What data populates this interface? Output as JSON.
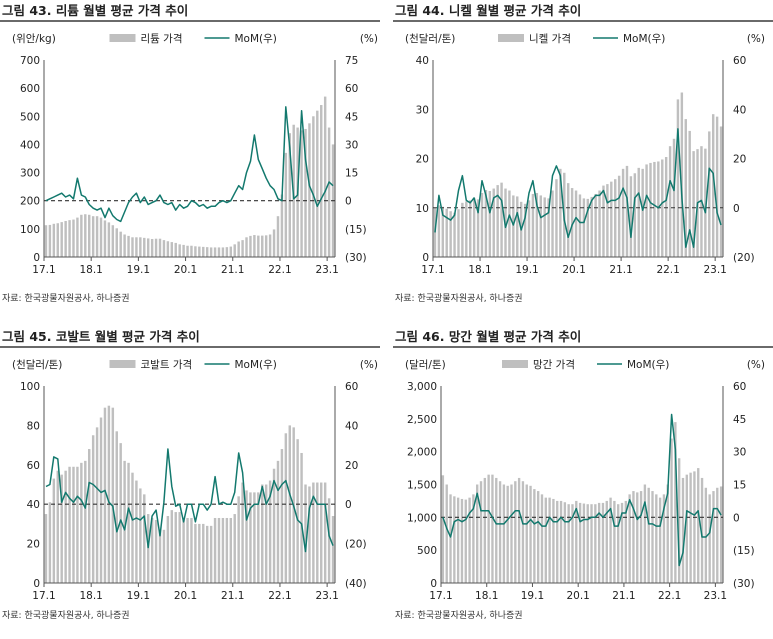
{
  "colors": {
    "bar": "#bfbfbf",
    "line": "#13796e",
    "zero": "#333333"
  },
  "source": "자료: 한국광물자원공사, 하나증권",
  "panels": [
    {
      "title": "그림 43. 리튬 월별 평균 가격 추이",
      "left_unit": "(위안/kg)",
      "right_unit": "(%)",
      "left_ticks": [
        "0",
        "100",
        "200",
        "300",
        "400",
        "500",
        "600",
        "700"
      ],
      "right_ticks": [
        "(30)",
        "(15)",
        "0",
        "15",
        "30",
        "45",
        "60",
        "75"
      ],
      "x_ticks": [
        "17.1",
        "18.1",
        "19.1",
        "20.1",
        "21.1",
        "22.1",
        "23.1"
      ],
      "legend": [
        "리튬 가격",
        "MoM(우)"
      ]
    },
    {
      "title": "그림 44. 니켈 월별 평균 가격 추이",
      "left_unit": "(천달러/톤)",
      "right_unit": "(%)",
      "left_ticks": [
        "0",
        "10",
        "20",
        "30",
        "40"
      ],
      "right_ticks": [
        "(20)",
        "0",
        "20",
        "40",
        "60"
      ],
      "x_ticks": [
        "17.1",
        "18.1",
        "19.1",
        "20.1",
        "21.1",
        "22.1",
        "23.1"
      ],
      "legend": [
        "니켈 가격",
        "MoM(우)"
      ]
    },
    {
      "title": "그림 45. 코발트 월별 평균 가격 추이",
      "left_unit": "(천달러/톤)",
      "right_unit": "(%)",
      "left_ticks": [
        "0",
        "20",
        "40",
        "60",
        "80",
        "100"
      ],
      "right_ticks": [
        "(40)",
        "(20)",
        "0",
        "20",
        "40",
        "60"
      ],
      "x_ticks": [
        "17.1",
        "18.1",
        "19.1",
        "20.1",
        "21.1",
        "22.1",
        "23.1"
      ],
      "legend": [
        "코발트 가격",
        "MoM(우)"
      ]
    },
    {
      "title": "그림 46. 망간 월별 평균 가격 추이",
      "left_unit": "(달러/톤)",
      "right_unit": "(%)",
      "left_ticks": [
        "0",
        "500",
        "1,000",
        "1,500",
        "2,000",
        "2,500",
        "3,000"
      ],
      "right_ticks": [
        "(30)",
        "(15)",
        "0",
        "15",
        "30",
        "45",
        "60"
      ],
      "x_ticks": [
        "17.1",
        "18.1",
        "19.1",
        "20.1",
        "21.1",
        "22.1",
        "23.1"
      ],
      "legend": [
        "망간 가격",
        "MoM(우)"
      ]
    }
  ],
  "chart_data": [
    {
      "type": "bar",
      "title": "리튬 월별 평균 가격 추이",
      "x": [
        "17.1",
        "17.2",
        "17.3",
        "17.4",
        "17.5",
        "17.6",
        "17.7",
        "17.8",
        "17.9",
        "17.10",
        "17.11",
        "17.12",
        "18.1",
        "18.2",
        "18.3",
        "18.4",
        "18.5",
        "18.6",
        "18.7",
        "18.8",
        "18.9",
        "18.10",
        "18.11",
        "18.12",
        "19.1",
        "19.2",
        "19.3",
        "19.4",
        "19.5",
        "19.6",
        "19.7",
        "19.8",
        "19.9",
        "19.10",
        "19.11",
        "19.12",
        "20.1",
        "20.2",
        "20.3",
        "20.4",
        "20.5",
        "20.6",
        "20.7",
        "20.8",
        "20.9",
        "20.10",
        "20.11",
        "20.12",
        "21.1",
        "21.2",
        "21.3",
        "21.4",
        "21.5",
        "21.6",
        "21.7",
        "21.8",
        "21.9",
        "21.10",
        "21.11",
        "21.12",
        "22.1",
        "22.2",
        "22.3",
        "22.4",
        "22.5",
        "22.6",
        "22.7",
        "22.8",
        "22.9",
        "22.10",
        "22.11",
        "22.12",
        "23.1",
        "23.2"
      ],
      "series": [
        {
          "name": "리튬 가격",
          "axis": "left",
          "values": [
            113,
            114,
            118,
            120,
            124,
            128,
            131,
            133,
            140,
            150,
            152,
            150,
            145,
            145,
            140,
            130,
            123,
            113,
            102,
            90,
            80,
            75,
            70,
            70,
            70,
            68,
            66,
            64,
            65,
            65,
            60,
            56,
            53,
            50,
            45,
            43,
            40,
            40,
            38,
            37,
            36,
            35,
            34,
            34,
            34,
            34,
            35,
            37,
            45,
            55,
            60,
            70,
            75,
            78,
            76,
            76,
            77,
            80,
            98,
            145,
            222,
            370,
            440,
            470,
            460,
            450,
            455,
            475,
            500,
            520,
            540,
            570,
            460,
            400
          ]
        },
        {
          "name": "MoM(우)",
          "axis": "right",
          "values": [
            0,
            1,
            2,
            3,
            4,
            2,
            3,
            1,
            12,
            3,
            2,
            -2,
            -4,
            -5,
            -4,
            -9,
            -4,
            -8,
            -10,
            -11,
            -6,
            -1,
            2,
            4,
            -1,
            2,
            -2,
            -1,
            0,
            3,
            -1,
            -2,
            -1,
            -5,
            -2,
            -4,
            -3,
            0,
            -1,
            -3,
            -2,
            -4,
            -3,
            -3,
            -1,
            0,
            -1,
            0,
            4,
            8,
            6,
            15,
            21,
            35,
            22,
            17,
            12,
            8,
            6,
            1,
            0,
            50,
            28,
            1,
            3,
            48,
            22,
            8,
            3,
            -3,
            1,
            5,
            10,
            8
          ]
        }
      ],
      "ylim": [
        0,
        700
      ],
      "y2lim": [
        -30,
        75
      ]
    },
    {
      "type": "bar",
      "title": "니켈 월별 평균 가격 추이",
      "x": [
        "17.1",
        "17.2",
        "17.3",
        "17.4",
        "17.5",
        "17.6",
        "17.7",
        "17.8",
        "17.9",
        "17.10",
        "17.11",
        "17.12",
        "18.1",
        "18.2",
        "18.3",
        "18.4",
        "18.5",
        "18.6",
        "18.7",
        "18.8",
        "18.9",
        "18.10",
        "18.11",
        "18.12",
        "19.1",
        "19.2",
        "19.3",
        "19.4",
        "19.5",
        "19.6",
        "19.7",
        "19.8",
        "19.9",
        "19.10",
        "19.11",
        "19.12",
        "20.1",
        "20.2",
        "20.3",
        "20.4",
        "20.5",
        "20.6",
        "20.7",
        "20.8",
        "20.9",
        "20.10",
        "20.11",
        "20.12",
        "21.1",
        "21.2",
        "21.3",
        "21.4",
        "21.5",
        "21.6",
        "21.7",
        "21.8",
        "21.9",
        "21.10",
        "21.11",
        "21.12",
        "22.1",
        "22.2",
        "22.3",
        "22.4",
        "22.5",
        "22.6",
        "22.7",
        "22.8",
        "22.9",
        "22.10",
        "22.11",
        "22.12",
        "23.1",
        "23.2"
      ],
      "series": [
        {
          "name": "니켈 가격",
          "axis": "left",
          "values": [
            10,
            10.5,
            10.2,
            9.8,
            9.3,
            9.0,
            9.7,
            11,
            11.3,
            11.5,
            12,
            11.7,
            13,
            13.6,
            13.4,
            13.9,
            14.6,
            15.1,
            13.9,
            13.5,
            12.5,
            12.3,
            11.2,
            10.8,
            11.5,
            12.8,
            13.0,
            12.5,
            12.1,
            11.9,
            13.5,
            15.8,
            17.9,
            17.1,
            15.0,
            14.0,
            13.5,
            12.7,
            11.9,
            11.8,
            12.2,
            12.8,
            13.5,
            14.5,
            14.8,
            15.3,
            15.8,
            16.5,
            17.9,
            18.5,
            16.4,
            17.0,
            18.1,
            17.9,
            18.8,
            19.1,
            19.3,
            19.4,
            19.8,
            20.3,
            22.5,
            24.0,
            32.0,
            33.4,
            28.0,
            25.6,
            21.5,
            21.9,
            22.5,
            22.0,
            25.5,
            29.0,
            28.5,
            26.5
          ]
        },
        {
          "name": "MoM(우)",
          "axis": "right",
          "values": [
            -10,
            5,
            -3,
            -4,
            -5,
            -3,
            7,
            13,
            3,
            2,
            4,
            -2,
            11,
            5,
            -2,
            4,
            5,
            3,
            -8,
            -3,
            -7,
            -2,
            -9,
            -4,
            6,
            11,
            1,
            -4,
            -3,
            -2,
            13,
            17,
            13,
            -5,
            -12,
            -7,
            -4,
            -6,
            -6,
            -1,
            3,
            5,
            5,
            7,
            2,
            3,
            3,
            4,
            8,
            4,
            -12,
            4,
            6,
            -1,
            5,
            2,
            1,
            0,
            2,
            3,
            11,
            7,
            32,
            4,
            -16,
            -9,
            -16,
            2,
            3,
            -2,
            16,
            14,
            -2,
            -7
          ]
        }
      ],
      "ylim": [
        0,
        40
      ],
      "y2lim": [
        -20,
        60
      ]
    },
    {
      "type": "bar",
      "title": "코발트 월별 평균 가격 추이",
      "x": [
        "17.1",
        "17.2",
        "17.3",
        "17.4",
        "17.5",
        "17.6",
        "17.7",
        "17.8",
        "17.9",
        "17.10",
        "17.11",
        "17.12",
        "18.1",
        "18.2",
        "18.3",
        "18.4",
        "18.5",
        "18.6",
        "18.7",
        "18.8",
        "18.9",
        "18.10",
        "18.11",
        "18.12",
        "19.1",
        "19.2",
        "19.3",
        "19.4",
        "19.5",
        "19.6",
        "19.7",
        "19.8",
        "19.9",
        "19.10",
        "19.11",
        "19.12",
        "20.1",
        "20.2",
        "20.3",
        "20.4",
        "20.5",
        "20.6",
        "20.7",
        "20.8",
        "20.9",
        "20.10",
        "20.11",
        "20.12",
        "21.1",
        "21.2",
        "21.3",
        "21.4",
        "21.5",
        "21.6",
        "21.7",
        "21.8",
        "21.9",
        "21.10",
        "21.11",
        "21.12",
        "22.1",
        "22.2",
        "22.3",
        "22.4",
        "22.5",
        "22.6",
        "22.7",
        "22.8",
        "22.9",
        "22.10",
        "22.11",
        "22.12",
        "23.1",
        "23.2"
      ],
      "series": [
        {
          "name": "코발트 가격",
          "axis": "left",
          "values": [
            35,
            41,
            53,
            57,
            55,
            57,
            59,
            59,
            59,
            61,
            62,
            68,
            75,
            79,
            84,
            89,
            90,
            89,
            77,
            71,
            62,
            61,
            56,
            52,
            48,
            45,
            35,
            33,
            32,
            27,
            27,
            34,
            37,
            36,
            36,
            33,
            33,
            33,
            30,
            30,
            30,
            29,
            29,
            33,
            33,
            33,
            33,
            33,
            35,
            44,
            51,
            47,
            46,
            46,
            46,
            50,
            50,
            52,
            58,
            62,
            68,
            76,
            80,
            79,
            73,
            66,
            50,
            49,
            51,
            51,
            51,
            51,
            43,
            34
          ]
        },
        {
          "name": "MoM(우)",
          "axis": "right",
          "values": [
            9,
            10,
            24,
            23,
            1,
            6,
            3,
            1,
            4,
            2,
            -2,
            11,
            10,
            8,
            6,
            7,
            1,
            -1,
            -14,
            -8,
            -13,
            -2,
            -8,
            -7,
            -8,
            -6,
            -22,
            -6,
            -3,
            -16,
            1,
            28,
            9,
            -1,
            0,
            -9,
            0,
            0,
            -9,
            0,
            0,
            -3,
            0,
            14,
            0,
            1,
            0,
            0,
            6,
            26,
            16,
            -8,
            -2,
            0,
            0,
            9,
            0,
            4,
            12,
            7,
            10,
            12,
            5,
            -1,
            -8,
            -10,
            -24,
            -2,
            4,
            0,
            0,
            0,
            -16,
            -21
          ]
        }
      ],
      "ylim": [
        0,
        100
      ],
      "y2lim": [
        -40,
        60
      ]
    },
    {
      "type": "bar",
      "title": "망간 월별 평균 가격 추이",
      "x": [
        "17.1",
        "17.2",
        "17.3",
        "17.4",
        "17.5",
        "17.6",
        "17.7",
        "17.8",
        "17.9",
        "17.10",
        "17.11",
        "17.12",
        "18.1",
        "18.2",
        "18.3",
        "18.4",
        "18.5",
        "18.6",
        "18.7",
        "18.8",
        "18.9",
        "18.10",
        "18.11",
        "18.12",
        "19.1",
        "19.2",
        "19.3",
        "19.4",
        "19.5",
        "19.6",
        "19.7",
        "19.8",
        "19.9",
        "19.10",
        "19.11",
        "19.12",
        "20.1",
        "20.2",
        "20.3",
        "20.4",
        "20.5",
        "20.6",
        "20.7",
        "20.8",
        "20.9",
        "20.10",
        "20.11",
        "20.12",
        "21.1",
        "21.2",
        "21.3",
        "21.4",
        "21.5",
        "21.6",
        "21.7",
        "21.8",
        "21.9",
        "21.10",
        "21.11",
        "21.12",
        "22.1",
        "22.2",
        "22.3",
        "22.4",
        "22.5",
        "22.6",
        "22.7",
        "22.8",
        "22.9",
        "22.10",
        "22.11",
        "22.12",
        "23.1",
        "23.2"
      ],
      "series": [
        {
          "name": "망간 가격",
          "axis": "left",
          "values": [
            1640,
            1500,
            1350,
            1320,
            1300,
            1280,
            1270,
            1300,
            1350,
            1500,
            1550,
            1600,
            1650,
            1650,
            1600,
            1550,
            1500,
            1480,
            1500,
            1550,
            1600,
            1550,
            1500,
            1480,
            1430,
            1400,
            1350,
            1300,
            1300,
            1280,
            1250,
            1250,
            1230,
            1200,
            1200,
            1250,
            1220,
            1210,
            1200,
            1200,
            1200,
            1220,
            1220,
            1250,
            1300,
            1250,
            1200,
            1220,
            1250,
            1350,
            1400,
            1380,
            1400,
            1500,
            1450,
            1400,
            1350,
            1300,
            1350,
            1500,
            2200,
            2450,
            1900,
            1600,
            1650,
            1680,
            1700,
            1750,
            1600,
            1450,
            1350,
            1400,
            1450,
            1470
          ]
        },
        {
          "name": "MoM(우)",
          "axis": "right",
          "values": [
            0,
            -5,
            -9,
            -2,
            -1,
            -2,
            -1,
            2,
            4,
            11,
            3,
            3,
            3,
            0,
            -3,
            -3,
            -3,
            -1,
            1,
            3,
            3,
            -3,
            -3,
            -1,
            -3,
            -2,
            -4,
            -4,
            0,
            -2,
            -2,
            0,
            -2,
            -2,
            0,
            4,
            -2,
            -1,
            -1,
            0,
            0,
            2,
            0,
            2,
            4,
            -4,
            -4,
            2,
            2,
            8,
            4,
            -1,
            1,
            7,
            -3,
            -3,
            -4,
            -4,
            4,
            11,
            47,
            31,
            -22,
            -16,
            3,
            2,
            1,
            3,
            -9,
            -9,
            -7,
            4,
            4,
            1
          ]
        }
      ],
      "ylim": [
        0,
        3000
      ],
      "y2lim": [
        -30,
        60
      ]
    }
  ]
}
